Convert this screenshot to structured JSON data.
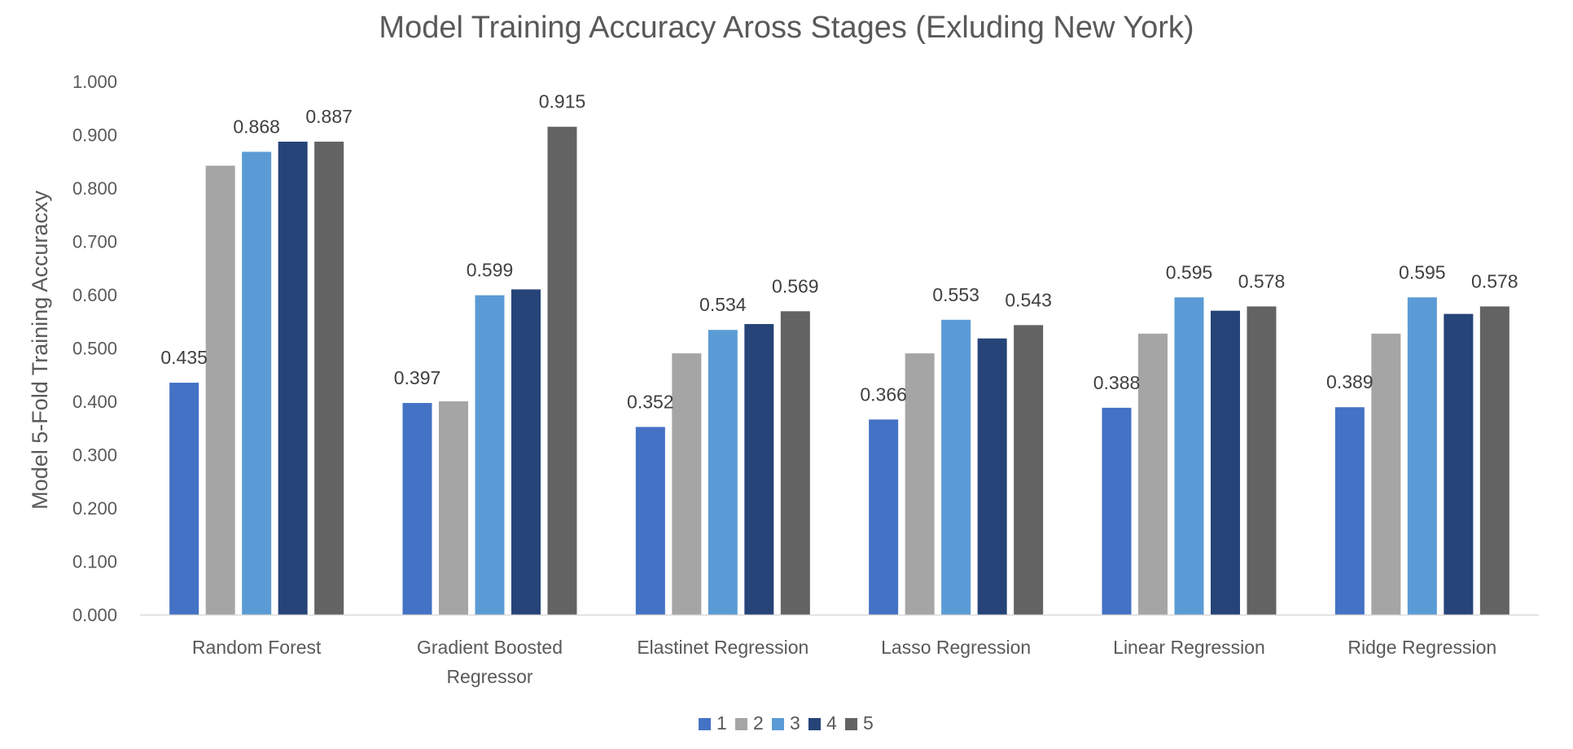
{
  "chart_data": {
    "type": "bar",
    "title": "Model Training Accuracy Aross Stages (Exluding New York)",
    "xlabel": "",
    "ylabel": "Model 5-Fold Training Accuracxy",
    "ylim": [
      0,
      1
    ],
    "y_ticks": [
      "0.000",
      "0.100",
      "0.200",
      "0.300",
      "0.400",
      "0.500",
      "0.600",
      "0.700",
      "0.800",
      "0.900",
      "1.000"
    ],
    "grid": false,
    "legend_position": "bottom",
    "categories": [
      [
        "Random Forest"
      ],
      [
        "Gradient Boosted",
        "Regressor"
      ],
      [
        "Elastinet Regression"
      ],
      [
        "Lasso Regression"
      ],
      [
        "Linear Regression"
      ],
      [
        "Ridge Regression"
      ]
    ],
    "series": [
      {
        "name": "1",
        "color": "#4472C4",
        "values": [
          0.435,
          0.397,
          0.352,
          0.366,
          0.388,
          0.389
        ]
      },
      {
        "name": "2",
        "color": "#A5A5A5",
        "values": [
          0.842,
          0.4,
          0.49,
          0.49,
          0.527,
          0.527
        ]
      },
      {
        "name": "3",
        "color": "#5B9BD5",
        "values": [
          0.868,
          0.599,
          0.534,
          0.553,
          0.595,
          0.595
        ]
      },
      {
        "name": "4",
        "color": "#264478",
        "values": [
          0.887,
          0.61,
          0.545,
          0.518,
          0.57,
          0.564
        ]
      },
      {
        "name": "5",
        "color": "#636363",
        "values": [
          0.887,
          0.915,
          0.569,
          0.543,
          0.578,
          0.578
        ]
      }
    ],
    "data_labels": [
      {
        "series": 0,
        "category": 0,
        "text": "0.435"
      },
      {
        "series": 2,
        "category": 0,
        "text": "0.868"
      },
      {
        "series": 4,
        "category": 0,
        "text": "0.887"
      },
      {
        "series": 0,
        "category": 1,
        "text": "0.397"
      },
      {
        "series": 2,
        "category": 1,
        "text": "0.599"
      },
      {
        "series": 4,
        "category": 1,
        "text": "0.915"
      },
      {
        "series": 0,
        "category": 2,
        "text": "0.352"
      },
      {
        "series": 2,
        "category": 2,
        "text": "0.534"
      },
      {
        "series": 4,
        "category": 2,
        "text": "0.569"
      },
      {
        "series": 0,
        "category": 3,
        "text": "0.366"
      },
      {
        "series": 2,
        "category": 3,
        "text": "0.553"
      },
      {
        "series": 4,
        "category": 3,
        "text": "0.543"
      },
      {
        "series": 0,
        "category": 4,
        "text": "0.388"
      },
      {
        "series": 2,
        "category": 4,
        "text": "0.595"
      },
      {
        "series": 4,
        "category": 4,
        "text": "0.578"
      },
      {
        "series": 0,
        "category": 5,
        "text": "0.389"
      },
      {
        "series": 2,
        "category": 5,
        "text": "0.595"
      },
      {
        "series": 4,
        "category": 5,
        "text": "0.578"
      }
    ]
  }
}
